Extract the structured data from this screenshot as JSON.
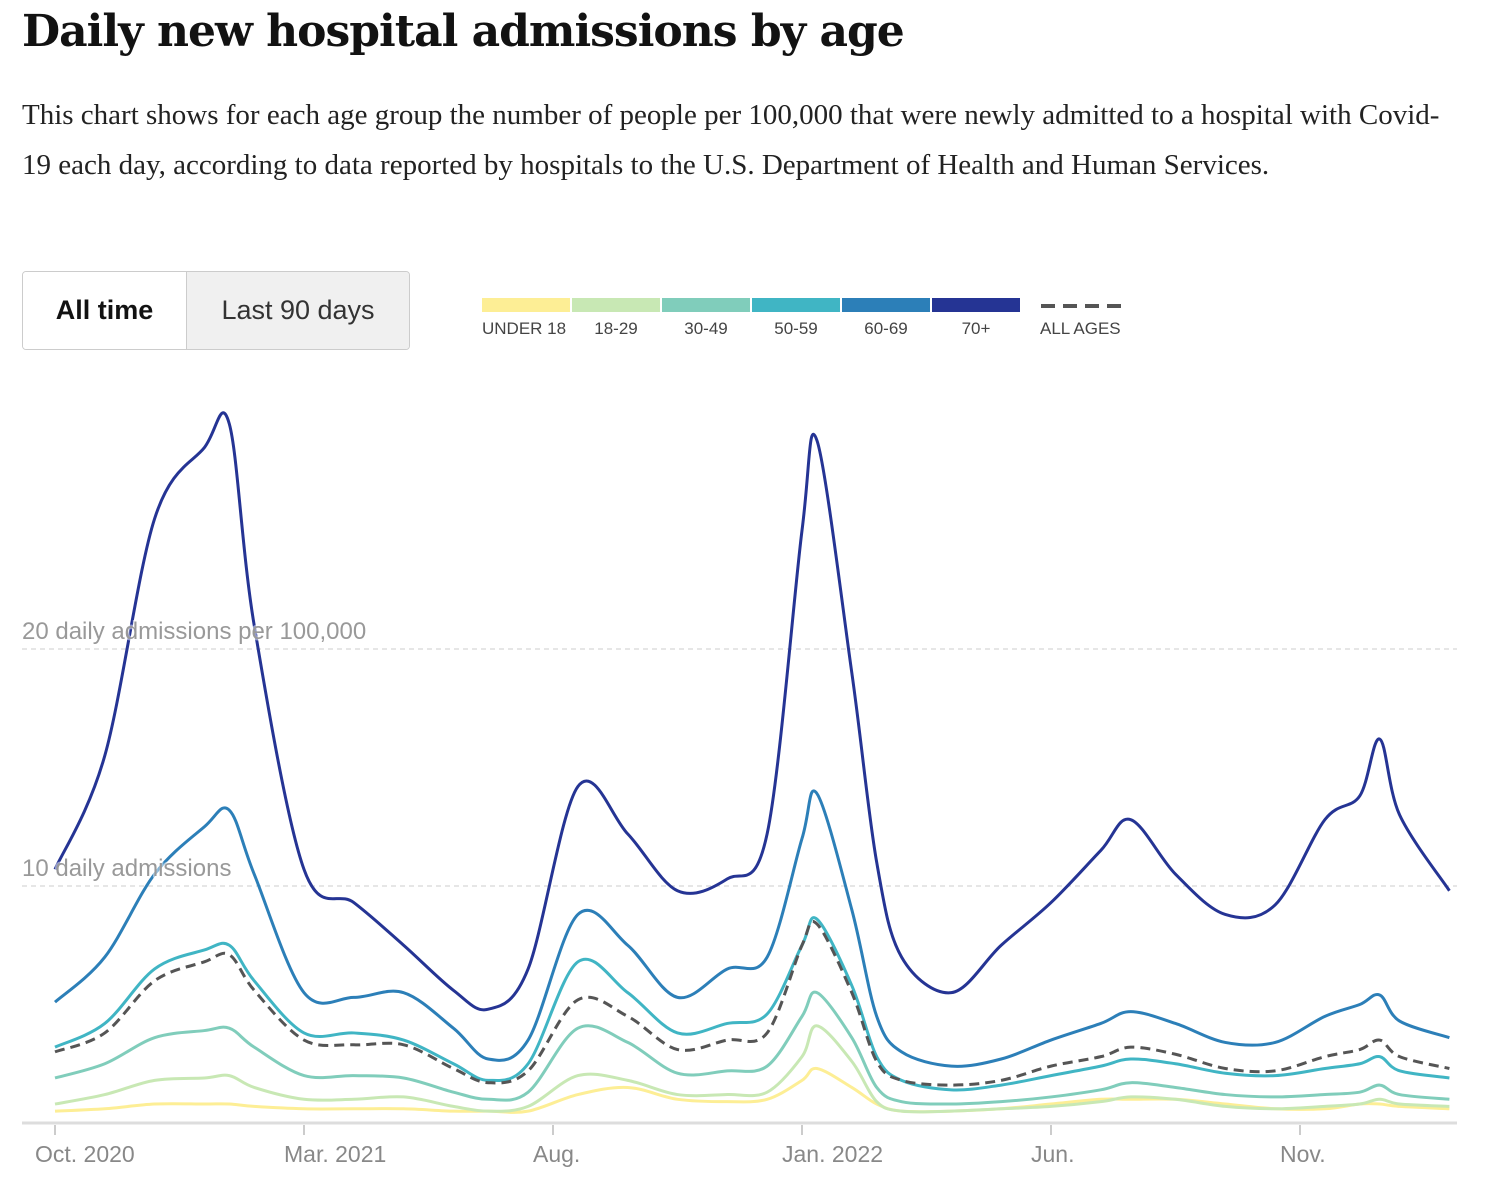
{
  "title": "Daily new hospital admissions by age",
  "subtitle": "This chart shows for each age group the number of people per 100,000 that were newly admitted to a hospital with Covid-19 each day, according to data reported by hospitals to the U.S. Department of Health and Human Services.",
  "toggle": {
    "all_time": "All time",
    "last_90": "Last 90 days"
  },
  "chart_data": {
    "type": "line",
    "title": "Daily new hospital admissions by age",
    "ylabel": "daily admissions per 100,000",
    "ylim": [
      0,
      30
    ],
    "gridlines": [
      {
        "value": 10,
        "label": "10 daily admissions"
      },
      {
        "value": 20,
        "label": "20 daily admissions per 100,000"
      }
    ],
    "x_unit": "months since Oct. 2020",
    "xlim": [
      0,
      28.1
    ],
    "x_ticks": [
      {
        "value": 0,
        "label": "Oct. 2020"
      },
      {
        "value": 5,
        "label": "Mar. 2021"
      },
      {
        "value": 10,
        "label": "Aug."
      },
      {
        "value": 15,
        "label": "Jan. 2022"
      },
      {
        "value": 20,
        "label": "Jun."
      },
      {
        "value": 25,
        "label": "Nov."
      }
    ],
    "legend_position": "top",
    "x": [
      0,
      1,
      2,
      3,
      3.5,
      4,
      5,
      6,
      7,
      8,
      8.7,
      9.5,
      10.5,
      11.5,
      12.5,
      13.5,
      14.3,
      15,
      15.3,
      16,
      16.5,
      17,
      18,
      19,
      20,
      21,
      21.6,
      22.5,
      23.5,
      24.5,
      25.5,
      26.2,
      26.6,
      27,
      28
    ],
    "series": [
      {
        "name": "UNDER 18",
        "color": "#fdee95",
        "dashed": false,
        "values": [
          0.5,
          0.6,
          0.8,
          0.8,
          0.8,
          0.7,
          0.6,
          0.6,
          0.6,
          0.5,
          0.5,
          0.5,
          1.2,
          1.5,
          1,
          0.9,
          1,
          1.8,
          2.3,
          1.5,
          0.8,
          0.5,
          0.5,
          0.6,
          0.8,
          1,
          1,
          1,
          0.8,
          0.6,
          0.6,
          0.8,
          0.8,
          0.7,
          0.6
        ]
      },
      {
        "name": "18-29",
        "color": "#c8e8b4",
        "dashed": false,
        "values": [
          0.8,
          1.2,
          1.8,
          1.9,
          2,
          1.5,
          1,
          1,
          1.1,
          0.7,
          0.5,
          0.7,
          2,
          1.8,
          1.2,
          1.2,
          1.3,
          2.8,
          4.1,
          2.6,
          0.9,
          0.5,
          0.5,
          0.6,
          0.7,
          0.9,
          1.1,
          1,
          0.7,
          0.6,
          0.7,
          0.8,
          1,
          0.8,
          0.7
        ]
      },
      {
        "name": "30-49",
        "color": "#80cdbb",
        "dashed": false,
        "values": [
          1.9,
          2.5,
          3.6,
          3.9,
          4,
          3.2,
          2,
          2,
          1.9,
          1.3,
          1,
          1.3,
          4,
          3.4,
          2.1,
          2.2,
          2.4,
          4.5,
          5.5,
          3.6,
          1.5,
          0.9,
          0.8,
          0.9,
          1.1,
          1.4,
          1.7,
          1.5,
          1.2,
          1.1,
          1.2,
          1.3,
          1.6,
          1.2,
          1
        ]
      },
      {
        "name": "50-59",
        "color": "#40b5c4",
        "dashed": false,
        "values": [
          3.2,
          4.2,
          6.5,
          7.3,
          7.5,
          6,
          3.8,
          3.8,
          3.5,
          2.5,
          1.8,
          2.5,
          6.8,
          5.5,
          3.8,
          4.2,
          4.6,
          7.5,
          8.6,
          5.8,
          2.8,
          1.8,
          1.4,
          1.6,
          2,
          2.4,
          2.7,
          2.5,
          2.1,
          2,
          2.3,
          2.5,
          2.8,
          2.2,
          1.9
        ]
      },
      {
        "name": "60-69",
        "color": "#2c7fb8",
        "dashed": false,
        "values": [
          5.1,
          7,
          10.5,
          12.5,
          13.2,
          10.5,
          5.5,
          5.3,
          5.5,
          4,
          2.7,
          3.5,
          8.8,
          7.5,
          5.3,
          6.5,
          7,
          12,
          13.9,
          9,
          4.5,
          3,
          2.4,
          2.7,
          3.5,
          4.2,
          4.7,
          4.2,
          3.4,
          3.4,
          4.5,
          5,
          5.4,
          4.3,
          3.6
        ]
      },
      {
        "name": "70+",
        "color": "#253494",
        "dashed": false,
        "values": [
          10.7,
          15.5,
          25.5,
          28.5,
          29.5,
          21,
          10.7,
          9.3,
          7.5,
          5.6,
          4.8,
          6.5,
          14.2,
          12.2,
          9.8,
          10.3,
          12.2,
          25,
          28.8,
          19,
          11,
          7,
          5.5,
          7.5,
          9.3,
          11.5,
          12.8,
          10.5,
          8.8,
          9.2,
          12.8,
          13.8,
          16.2,
          13,
          9.8
        ]
      },
      {
        "name": "ALL AGES",
        "color": "#555555",
        "dashed": true,
        "values": [
          3,
          3.8,
          6,
          6.8,
          7.1,
          5.6,
          3.5,
          3.3,
          3.3,
          2.3,
          1.7,
          2.2,
          5.2,
          4.5,
          3.1,
          3.5,
          3.8,
          7.5,
          8.4,
          5.5,
          2.6,
          1.8,
          1.6,
          1.8,
          2.4,
          2.8,
          3.2,
          2.9,
          2.3,
          2.2,
          2.8,
          3.1,
          3.5,
          2.8,
          2.3
        ]
      }
    ]
  }
}
